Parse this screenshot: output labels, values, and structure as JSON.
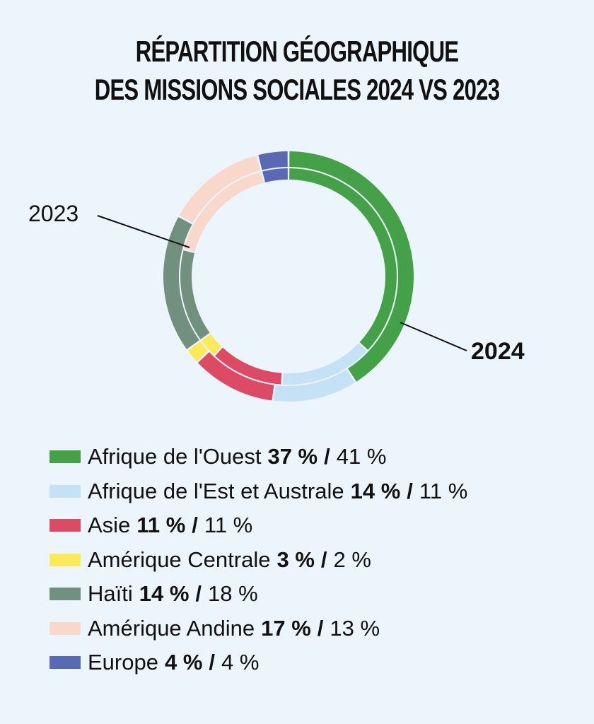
{
  "title": {
    "line1": "Répartition géographique",
    "line2": "des missions sociales 2024 vs 2023"
  },
  "callouts": {
    "outer_ring_label": "2023",
    "inner_ring_label": "2024"
  },
  "legend_separator": "/",
  "chart_data": {
    "type": "pie",
    "subtype": "double-ring donut",
    "title": "Répartition géographique des missions sociales 2024 vs 2023",
    "unit": "%",
    "categories": [
      "Afrique de l'Ouest",
      "Afrique de l'Est et Australe",
      "Asie",
      "Amérique Centrale",
      "Haïti",
      "Amérique Andine",
      "Europe"
    ],
    "colors": [
      "#45a148",
      "#c4e1f5",
      "#dc4a63",
      "#fbe95a",
      "#71907d",
      "#f8d8cb",
      "#5a69b4"
    ],
    "series": [
      {
        "name": "2024",
        "ring": "inner",
        "values": [
          37,
          14,
          11,
          3,
          14,
          17,
          4
        ],
        "labels": [
          "37 %",
          "14 %",
          "11 %",
          "3 %",
          "14 %",
          "17 %",
          "4 %"
        ]
      },
      {
        "name": "2023",
        "ring": "outer",
        "values": [
          41,
          11,
          11,
          2,
          18,
          13,
          4
        ],
        "labels": [
          "41 %",
          "11 %",
          "11 %",
          "2 %",
          "18 %",
          "13 %",
          "4 %"
        ]
      }
    ]
  }
}
